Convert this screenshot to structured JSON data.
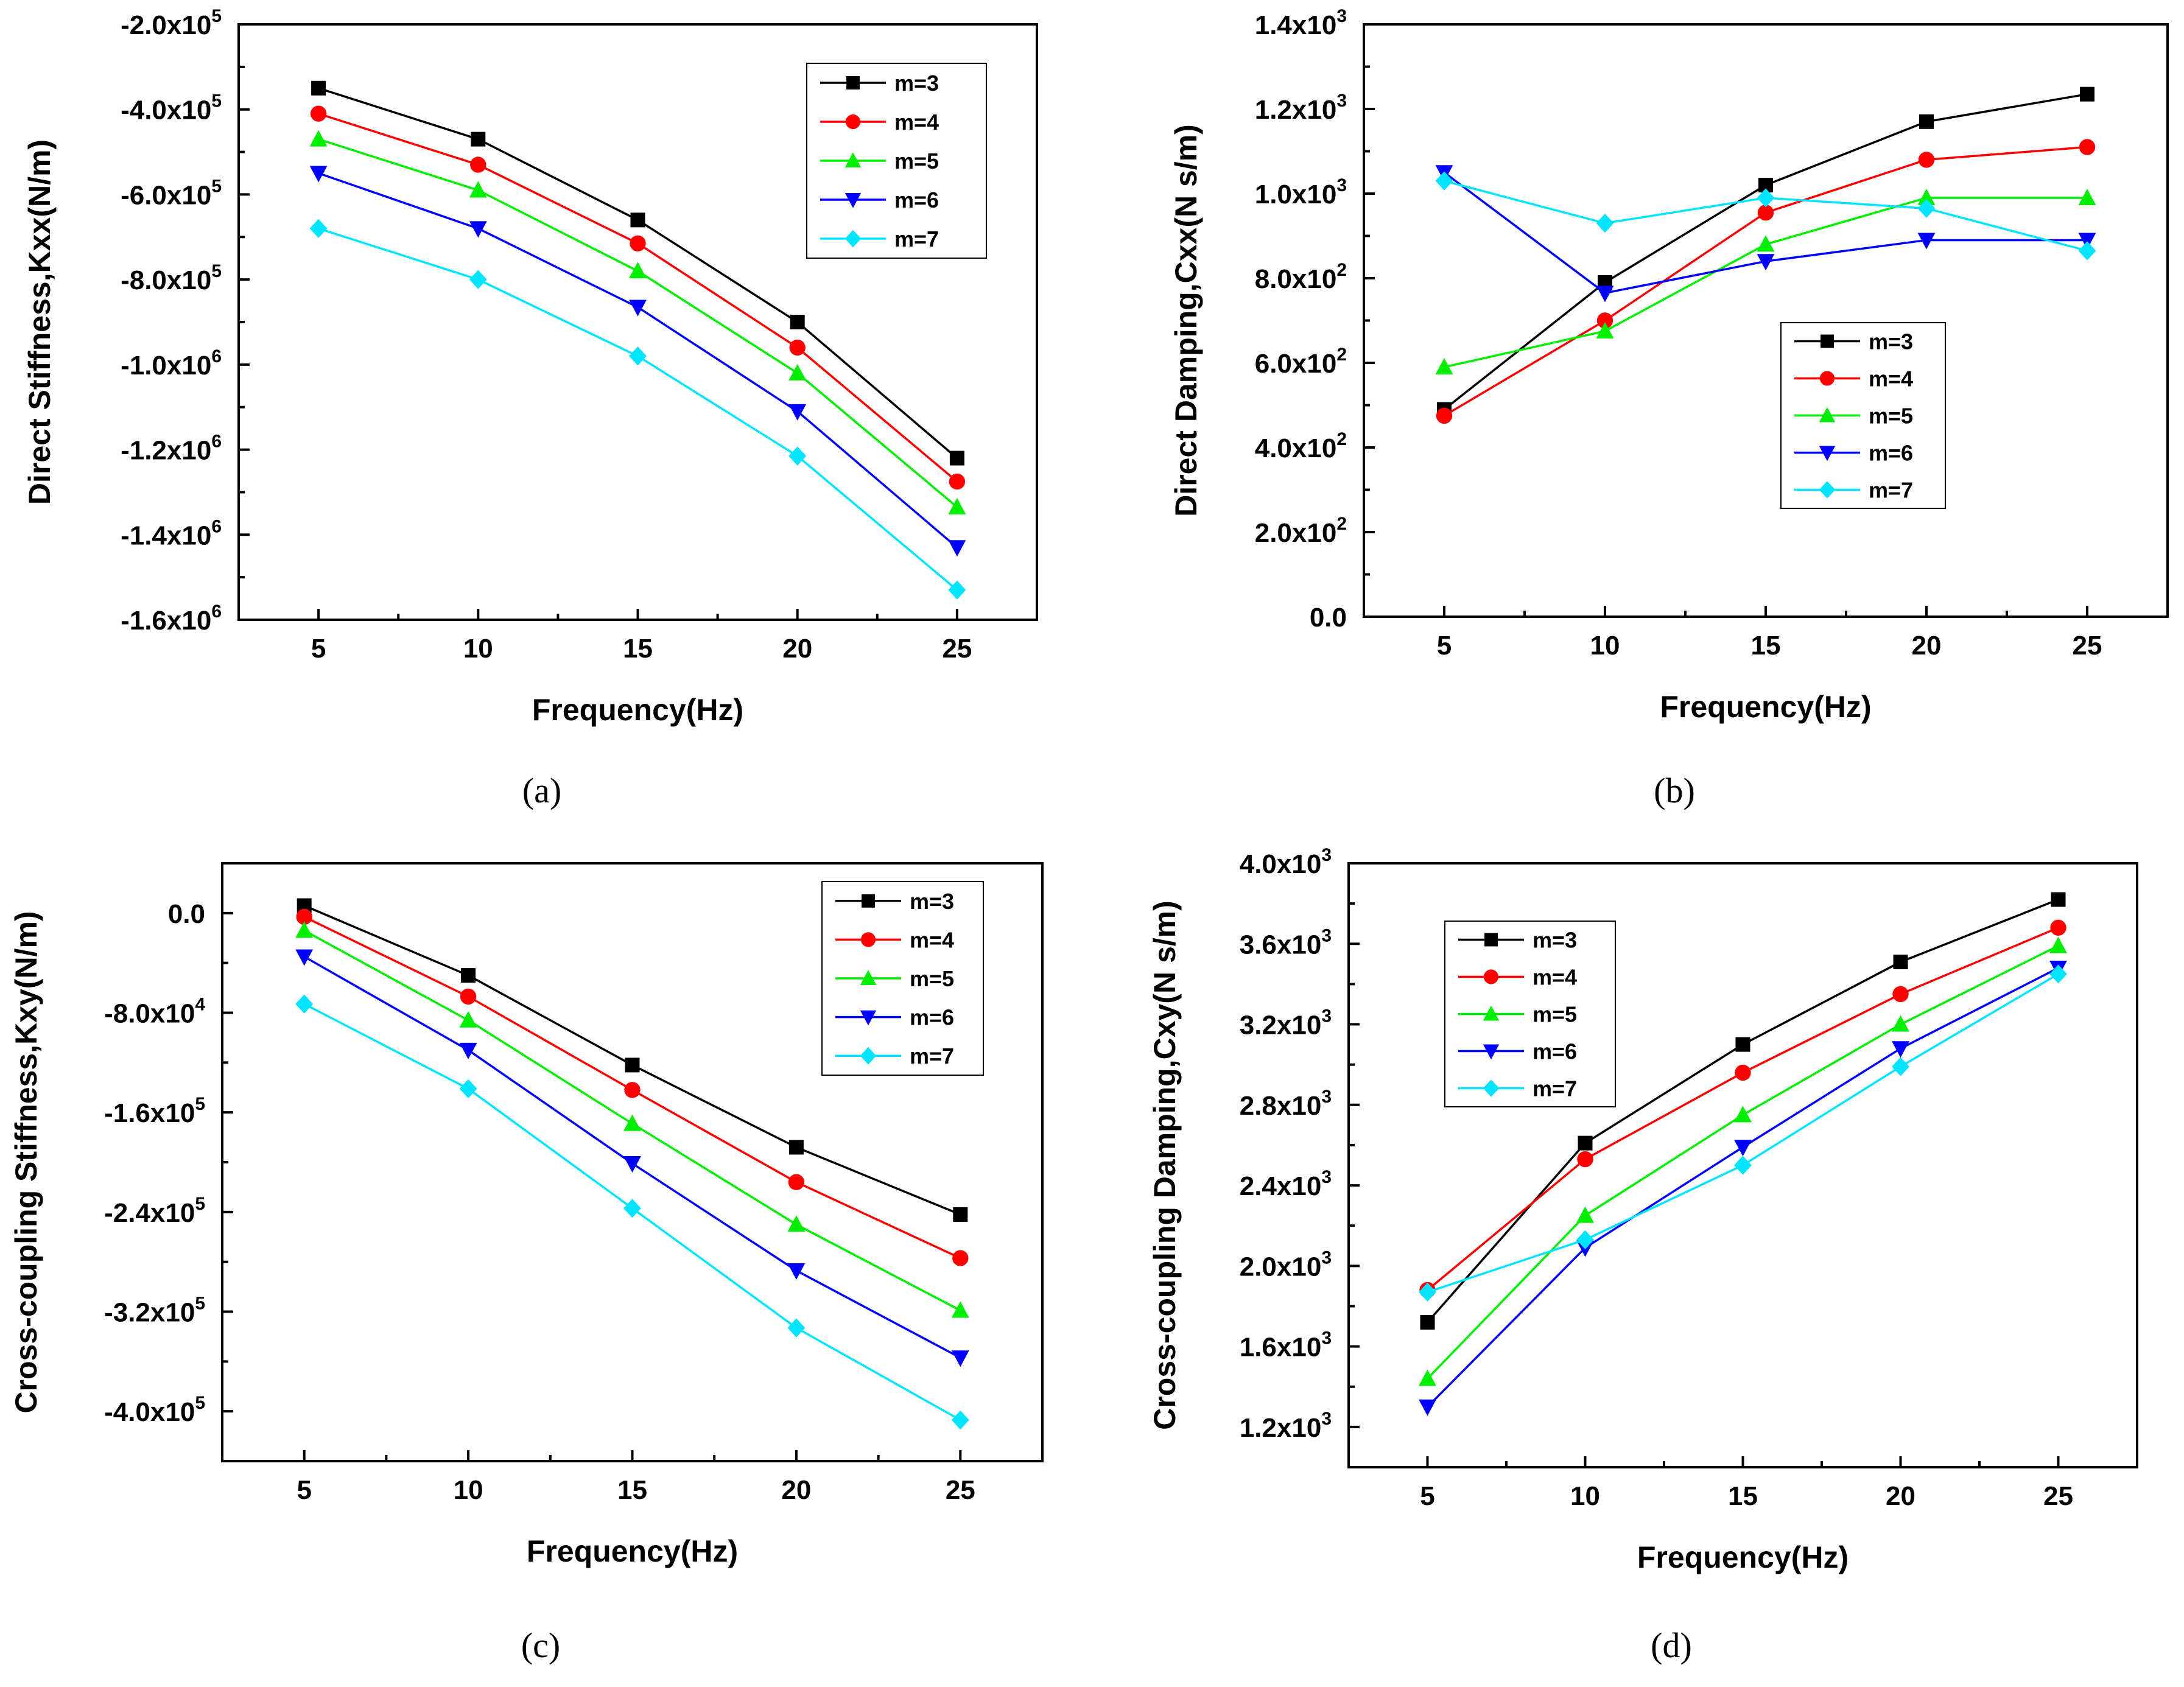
{
  "figure": {
    "panels_count": 4
  },
  "chart_data": [
    {
      "type": "line",
      "panel": "a",
      "caption": "(a)",
      "title": "",
      "xlabel": "Frequency(Hz)",
      "ylabel": "Direct Stiffness,Kxx(N/m)",
      "x": [
        5,
        10,
        15,
        20,
        25
      ],
      "x_tick_labels": [
        "5",
        "10",
        "15",
        "20",
        "25"
      ],
      "xlim": [
        2.5,
        27.5
      ],
      "ylim": [
        -1600000,
        -200000
      ],
      "y_ticks": [
        {
          "value": -200000,
          "mantissa": "-2.0x10",
          "exp": "5"
        },
        {
          "value": -400000,
          "mantissa": "-4.0x10",
          "exp": "5"
        },
        {
          "value": -600000,
          "mantissa": "-6.0x10",
          "exp": "5"
        },
        {
          "value": -800000,
          "mantissa": "-8.0x10",
          "exp": "5"
        },
        {
          "value": -1000000,
          "mantissa": "-1.0x10",
          "exp": "6"
        },
        {
          "value": -1200000,
          "mantissa": "-1.2x10",
          "exp": "6"
        },
        {
          "value": -1400000,
          "mantissa": "-1.4x10",
          "exp": "6"
        },
        {
          "value": -1600000,
          "mantissa": "-1.6x10",
          "exp": "6"
        }
      ],
      "legend_position": "top-right",
      "series": [
        {
          "name": "m=3",
          "color": "#000000",
          "marker": "square",
          "values": [
            -350000,
            -470000,
            -660000,
            -900000,
            -1220000
          ]
        },
        {
          "name": "m=4",
          "color": "#ff0000",
          "marker": "circle",
          "values": [
            -410000,
            -530000,
            -715000,
            -960000,
            -1275000
          ]
        },
        {
          "name": "m=5",
          "color": "#00ee00",
          "marker": "triangle-up",
          "values": [
            -470000,
            -590000,
            -780000,
            -1020000,
            -1335000
          ]
        },
        {
          "name": "m=6",
          "color": "#0000ff",
          "marker": "triangle-down",
          "values": [
            -550000,
            -680000,
            -865000,
            -1110000,
            -1430000
          ]
        },
        {
          "name": "m=7",
          "color": "#00e5ff",
          "marker": "diamond",
          "values": [
            -680000,
            -800000,
            -980000,
            -1215000,
            -1530000
          ]
        }
      ]
    },
    {
      "type": "line",
      "panel": "b",
      "caption": "(b)",
      "title": "",
      "xlabel": "Frequency(Hz)",
      "ylabel": "Direct Damping,Cxx(N s/m)",
      "x": [
        5,
        10,
        15,
        20,
        25
      ],
      "x_tick_labels": [
        "5",
        "10",
        "15",
        "20",
        "25"
      ],
      "xlim": [
        2.5,
        27.5
      ],
      "ylim": [
        0,
        1400
      ],
      "y_ticks": [
        {
          "value": 0,
          "mantissa": "0.0",
          "exp": ""
        },
        {
          "value": 200,
          "mantissa": "2.0x10",
          "exp": "2"
        },
        {
          "value": 400,
          "mantissa": "4.0x10",
          "exp": "2"
        },
        {
          "value": 600,
          "mantissa": "6.0x10",
          "exp": "2"
        },
        {
          "value": 800,
          "mantissa": "8.0x10",
          "exp": "2"
        },
        {
          "value": 1000,
          "mantissa": "1.0x10",
          "exp": "3"
        },
        {
          "value": 1200,
          "mantissa": "1.2x10",
          "exp": "3"
        },
        {
          "value": 1400,
          "mantissa": "1.4x10",
          "exp": "3"
        }
      ],
      "legend_position": "center",
      "series": [
        {
          "name": "m=3",
          "color": "#000000",
          "marker": "square",
          "values": [
            490,
            790,
            1020,
            1170,
            1235
          ]
        },
        {
          "name": "m=4",
          "color": "#ff0000",
          "marker": "circle",
          "values": [
            475,
            700,
            955,
            1080,
            1110
          ]
        },
        {
          "name": "m=5",
          "color": "#00ee00",
          "marker": "triangle-up",
          "values": [
            590,
            675,
            880,
            990,
            990
          ]
        },
        {
          "name": "m=6",
          "color": "#0000ff",
          "marker": "triangle-down",
          "values": [
            1050,
            765,
            840,
            890,
            890
          ]
        },
        {
          "name": "m=7",
          "color": "#00e5ff",
          "marker": "diamond",
          "values": [
            1030,
            930,
            990,
            965,
            865
          ]
        }
      ]
    },
    {
      "type": "line",
      "panel": "c",
      "caption": "(c)",
      "title": "",
      "xlabel": "Frequency(Hz)",
      "ylabel": "Cross-coupling Stiffness,Kxy(N/m)",
      "x": [
        5,
        10,
        15,
        20,
        25
      ],
      "x_tick_labels": [
        "5",
        "10",
        "15",
        "20",
        "25"
      ],
      "xlim": [
        2.5,
        27.5
      ],
      "ylim": [
        -440000,
        40000
      ],
      "y_ticks": [
        {
          "value": 0,
          "mantissa": "0.0",
          "exp": ""
        },
        {
          "value": -80000,
          "mantissa": "-8.0x10",
          "exp": "4"
        },
        {
          "value": -160000,
          "mantissa": "-1.6x10",
          "exp": "5"
        },
        {
          "value": -240000,
          "mantissa": "-2.4x10",
          "exp": "5"
        },
        {
          "value": -320000,
          "mantissa": "-3.2x10",
          "exp": "5"
        },
        {
          "value": -400000,
          "mantissa": "-4.0x10",
          "exp": "5"
        }
      ],
      "legend_position": "top-right",
      "series": [
        {
          "name": "m=3",
          "color": "#000000",
          "marker": "square",
          "values": [
            6000,
            -50000,
            -122000,
            -188000,
            -242000
          ]
        },
        {
          "name": "m=4",
          "color": "#ff0000",
          "marker": "circle",
          "values": [
            -3000,
            -67000,
            -142000,
            -216000,
            -277000
          ]
        },
        {
          "name": "m=5",
          "color": "#00ee00",
          "marker": "triangle-up",
          "values": [
            -14000,
            -86000,
            -169000,
            -250000,
            -319000
          ]
        },
        {
          "name": "m=6",
          "color": "#0000ff",
          "marker": "triangle-down",
          "values": [
            -35000,
            -110000,
            -201000,
            -287000,
            -357000
          ]
        },
        {
          "name": "m=7",
          "color": "#00e5ff",
          "marker": "diamond",
          "values": [
            -73000,
            -141000,
            -237000,
            -333000,
            -407000
          ]
        }
      ]
    },
    {
      "type": "line",
      "panel": "d",
      "caption": "(d)",
      "title": "",
      "xlabel": "Frequency(Hz)",
      "ylabel": "Cross-coupling Damping,Cxy(N s/m)",
      "x": [
        5,
        10,
        15,
        20,
        25
      ],
      "x_tick_labels": [
        "5",
        "10",
        "15",
        "20",
        "25"
      ],
      "xlim": [
        2.5,
        27.5
      ],
      "ylim": [
        1000,
        4000
      ],
      "y_ticks": [
        {
          "value": 1200,
          "mantissa": "1.2x10",
          "exp": "3"
        },
        {
          "value": 1600,
          "mantissa": "1.6x10",
          "exp": "3"
        },
        {
          "value": 2000,
          "mantissa": "2.0x10",
          "exp": "3"
        },
        {
          "value": 2400,
          "mantissa": "2.4x10",
          "exp": "3"
        },
        {
          "value": 2800,
          "mantissa": "2.8x10",
          "exp": "3"
        },
        {
          "value": 3200,
          "mantissa": "3.2x10",
          "exp": "3"
        },
        {
          "value": 3600,
          "mantissa": "3.6x10",
          "exp": "3"
        },
        {
          "value": 4000,
          "mantissa": "4.0x10",
          "exp": "3"
        }
      ],
      "legend_position": "top-left",
      "series": [
        {
          "name": "m=3",
          "color": "#000000",
          "marker": "square",
          "values": [
            1720,
            2610,
            3100,
            3510,
            3820
          ]
        },
        {
          "name": "m=4",
          "color": "#ff0000",
          "marker": "circle",
          "values": [
            1880,
            2530,
            2960,
            3350,
            3680
          ]
        },
        {
          "name": "m=5",
          "color": "#00ee00",
          "marker": "triangle-up",
          "values": [
            1440,
            2250,
            2750,
            3200,
            3590
          ]
        },
        {
          "name": "m=6",
          "color": "#0000ff",
          "marker": "triangle-down",
          "values": [
            1300,
            2090,
            2590,
            3080,
            3480
          ]
        },
        {
          "name": "m=7",
          "color": "#00e5ff",
          "marker": "diamond",
          "values": [
            1870,
            2130,
            2500,
            2990,
            3450
          ]
        }
      ]
    }
  ]
}
